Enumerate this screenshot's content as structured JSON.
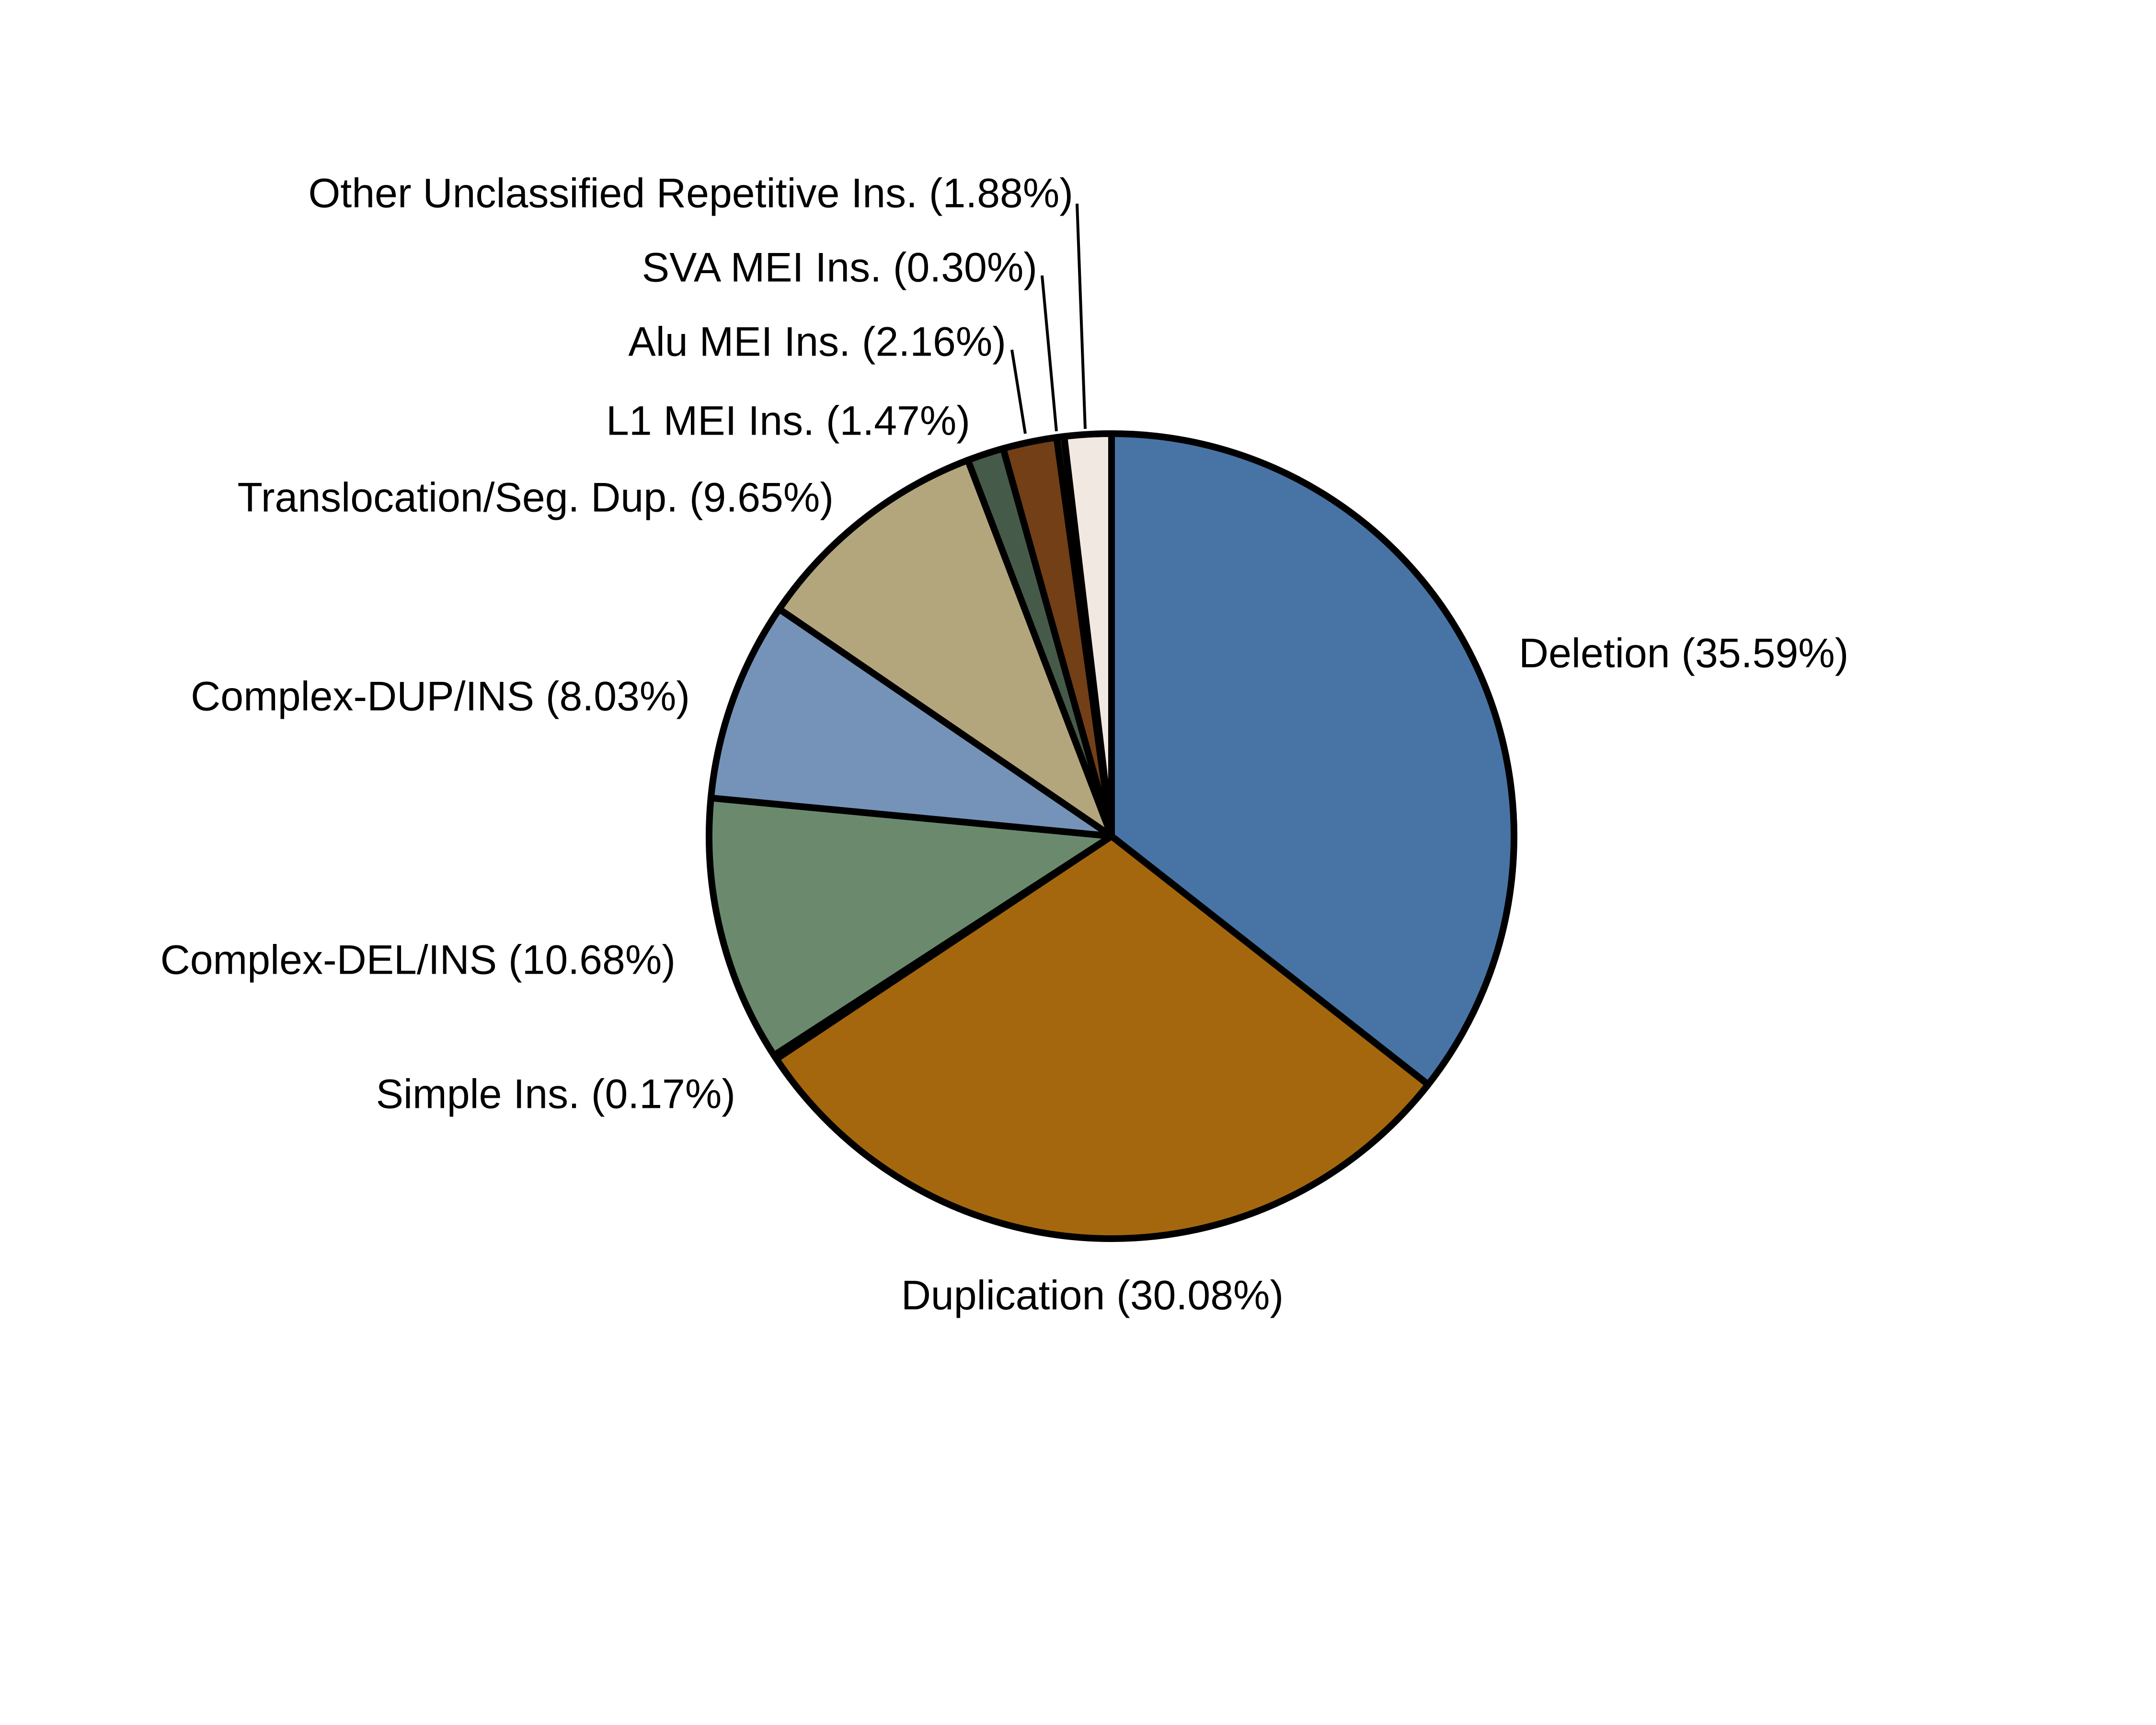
{
  "chart_data": {
    "type": "pie",
    "start_angle": "12 o'clock",
    "direction": "clockwise",
    "slices": [
      {
        "label": "Deletion (35.59%)",
        "value": 35.59,
        "color": "#4874a5"
      },
      {
        "label": "Duplication (30.08%)",
        "value": 30.08,
        "color": "#a5670e"
      },
      {
        "label": "Simple Ins. (0.17%)",
        "value": 0.17,
        "color": "#2b2b2b"
      },
      {
        "label": "Complex-DEL/INS (10.68%)",
        "value": 10.68,
        "color": "#6b8a6d"
      },
      {
        "label": "Complex-DUP/INS (8.03%)",
        "value": 8.03,
        "color": "#7593b8"
      },
      {
        "label": "Translocation/Seg. Dup. (9.65%)",
        "value": 9.65,
        "color": "#b4a67c"
      },
      {
        "label": "L1 MEI Ins. (1.47%)",
        "value": 1.47,
        "color": "#465a4a"
      },
      {
        "label": "Alu MEI Ins. (2.16%)",
        "value": 2.16,
        "color": "#733f16"
      },
      {
        "label": "SVA MEI Ins. (0.30%)",
        "value": 0.3,
        "color": "#2a1a10"
      },
      {
        "label": "Other Unclassified Repetitive Ins. (1.88%)",
        "value": 1.88,
        "color": "#f2e8e2"
      }
    ]
  }
}
